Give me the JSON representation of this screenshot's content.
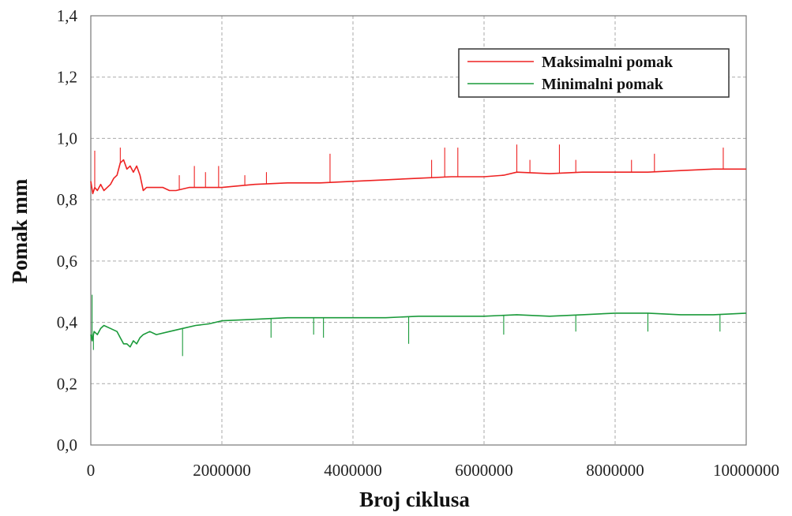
{
  "chart_data": {
    "type": "line",
    "xlabel": "Broj ciklusa",
    "ylabel": "Pomak mm",
    "xlim": [
      0,
      10000000
    ],
    "ylim": [
      0,
      1.4
    ],
    "grid": true,
    "legend_position": "top-right",
    "x_ticks": [
      0,
      2000000,
      4000000,
      6000000,
      8000000,
      10000000
    ],
    "x_tick_labels": [
      "0",
      "2000000",
      "4000000",
      "6000000",
      "8000000",
      "10000000"
    ],
    "y_ticks": [
      0,
      0.2,
      0.4,
      0.6,
      0.8,
      1.0,
      1.2,
      1.4
    ],
    "y_tick_labels": [
      "0,0",
      "0,2",
      "0,4",
      "0,6",
      "0,8",
      "1,0",
      "1,2",
      "1,4"
    ],
    "series": [
      {
        "name": "Maksimalni pomak",
        "color": "#ee2222",
        "x": [
          0,
          30000,
          60000,
          100000,
          150000,
          200000,
          250000,
          300000,
          350000,
          400000,
          450000,
          500000,
          550000,
          600000,
          650000,
          700000,
          750000,
          800000,
          850000,
          900000,
          1000000,
          1100000,
          1200000,
          1300000,
          1500000,
          1700000,
          2000000,
          2500000,
          3000000,
          3500000,
          4000000,
          4500000,
          5000000,
          5500000,
          6000000,
          6300000,
          6500000,
          7000000,
          7500000,
          8000000,
          8500000,
          9000000,
          9500000,
          10000000
        ],
        "y": [
          0.86,
          0.82,
          0.84,
          0.83,
          0.85,
          0.83,
          0.84,
          0.85,
          0.87,
          0.88,
          0.92,
          0.93,
          0.9,
          0.91,
          0.89,
          0.91,
          0.88,
          0.83,
          0.84,
          0.84,
          0.84,
          0.84,
          0.83,
          0.83,
          0.84,
          0.84,
          0.84,
          0.85,
          0.855,
          0.855,
          0.86,
          0.865,
          0.87,
          0.875,
          0.875,
          0.88,
          0.89,
          0.885,
          0.89,
          0.89,
          0.89,
          0.895,
          0.9,
          0.9
        ],
        "spikes": [
          {
            "x": 60000,
            "y": 0.96
          },
          {
            "x": 450000,
            "y": 0.97
          },
          {
            "x": 1350000,
            "y": 0.88
          },
          {
            "x": 1580000,
            "y": 0.91
          },
          {
            "x": 1750000,
            "y": 0.89
          },
          {
            "x": 1950000,
            "y": 0.91
          },
          {
            "x": 2350000,
            "y": 0.88
          },
          {
            "x": 2680000,
            "y": 0.89
          },
          {
            "x": 3650000,
            "y": 0.95
          },
          {
            "x": 5200000,
            "y": 0.93
          },
          {
            "x": 5400000,
            "y": 0.97
          },
          {
            "x": 5600000,
            "y": 0.97
          },
          {
            "x": 6500000,
            "y": 0.98
          },
          {
            "x": 6700000,
            "y": 0.93
          },
          {
            "x": 7150000,
            "y": 0.98
          },
          {
            "x": 7400000,
            "y": 0.93
          },
          {
            "x": 8250000,
            "y": 0.93
          },
          {
            "x": 8600000,
            "y": 0.95
          },
          {
            "x": 9650000,
            "y": 0.97
          }
        ]
      },
      {
        "name": "Minimalni pomak",
        "color": "#1a9a3a",
        "x": [
          0,
          20000,
          50000,
          100000,
          150000,
          200000,
          300000,
          400000,
          450000,
          500000,
          550000,
          600000,
          650000,
          700000,
          750000,
          800000,
          900000,
          1000000,
          1200000,
          1400000,
          1600000,
          1800000,
          2000000,
          2500000,
          3000000,
          3500000,
          4000000,
          4500000,
          5000000,
          5500000,
          6000000,
          6500000,
          7000000,
          7500000,
          8000000,
          8500000,
          9000000,
          9500000,
          10000000
        ],
        "y": [
          0.36,
          0.34,
          0.37,
          0.36,
          0.38,
          0.39,
          0.38,
          0.37,
          0.35,
          0.33,
          0.33,
          0.32,
          0.34,
          0.33,
          0.35,
          0.36,
          0.37,
          0.36,
          0.37,
          0.38,
          0.39,
          0.395,
          0.405,
          0.41,
          0.415,
          0.415,
          0.415,
          0.415,
          0.42,
          0.42,
          0.42,
          0.425,
          0.42,
          0.425,
          0.43,
          0.43,
          0.425,
          0.425,
          0.43
        ],
        "spikes": [
          {
            "x": 20000,
            "y": 0.49
          },
          {
            "x": 40000,
            "y": 0.31
          },
          {
            "x": 1400000,
            "y": 0.29
          },
          {
            "x": 2750000,
            "y": 0.35
          },
          {
            "x": 3400000,
            "y": 0.36
          },
          {
            "x": 3550000,
            "y": 0.35
          },
          {
            "x": 4850000,
            "y": 0.33
          },
          {
            "x": 6300000,
            "y": 0.36
          },
          {
            "x": 7400000,
            "y": 0.37
          },
          {
            "x": 8500000,
            "y": 0.37
          },
          {
            "x": 9600000,
            "y": 0.37
          }
        ]
      }
    ]
  }
}
